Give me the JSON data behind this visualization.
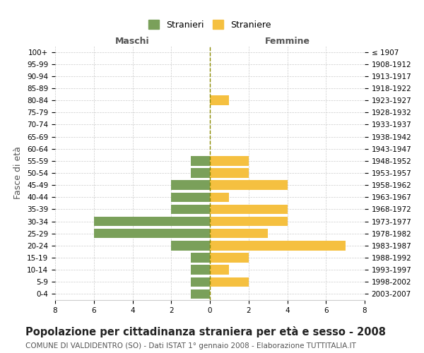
{
  "age_groups": [
    "100+",
    "95-99",
    "90-94",
    "85-89",
    "80-84",
    "75-79",
    "70-74",
    "65-69",
    "60-64",
    "55-59",
    "50-54",
    "45-49",
    "40-44",
    "35-39",
    "30-34",
    "25-29",
    "20-24",
    "15-19",
    "10-14",
    "5-9",
    "0-4"
  ],
  "birth_years": [
    "≤ 1907",
    "1908-1912",
    "1913-1917",
    "1918-1922",
    "1923-1927",
    "1928-1932",
    "1933-1937",
    "1938-1942",
    "1943-1947",
    "1948-1952",
    "1953-1957",
    "1958-1962",
    "1963-1967",
    "1968-1972",
    "1973-1977",
    "1978-1982",
    "1983-1987",
    "1988-1992",
    "1993-1997",
    "1998-2002",
    "2003-2007"
  ],
  "maschi": [
    0,
    0,
    0,
    0,
    0,
    0,
    0,
    0,
    0,
    1,
    1,
    2,
    2,
    2,
    6,
    6,
    2,
    1,
    1,
    1,
    1
  ],
  "femmine": [
    0,
    0,
    0,
    0,
    1,
    0,
    0,
    0,
    0,
    2,
    2,
    4,
    1,
    4,
    4,
    3,
    7,
    2,
    1,
    2,
    0
  ],
  "male_color": "#7aA05a",
  "female_color": "#F5C040",
  "background_color": "#ffffff",
  "grid_color": "#cccccc",
  "title": "Popolazione per cittadinanza straniera per età e sesso - 2008",
  "subtitle": "COMUNE DI VALDIDENTRO (SO) - Dati ISTAT 1° gennaio 2008 - Elaborazione TUTTITALIA.IT",
  "xlabel_left": "Maschi",
  "xlabel_right": "Femmine",
  "ylabel_left": "Fasce di età",
  "legend_male": "Stranieri",
  "legend_female": "Straniere",
  "xlim": 8,
  "title_fontsize": 10.5,
  "subtitle_fontsize": 7.5,
  "label_fontsize": 9,
  "tick_fontsize": 7.5
}
